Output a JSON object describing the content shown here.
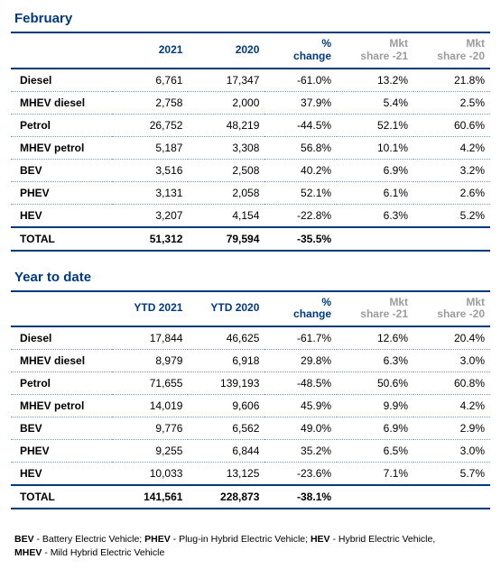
{
  "sections": [
    {
      "id": "feb",
      "title": "February",
      "headers": [
        "",
        "2021",
        "2020",
        "% change",
        "Mkt share -21",
        "Mkt share -20"
      ],
      "rows": [
        {
          "label": "Diesel",
          "a": "6,761",
          "b": "17,347",
          "c": "-61.0%",
          "d": "13.2%",
          "e": "21.8%"
        },
        {
          "label": "MHEV diesel",
          "a": "2,758",
          "b": "2,000",
          "c": "37.9%",
          "d": "5.4%",
          "e": "2.5%"
        },
        {
          "label": "Petrol",
          "a": "26,752",
          "b": "48,219",
          "c": "-44.5%",
          "d": "52.1%",
          "e": "60.6%"
        },
        {
          "label": "MHEV petrol",
          "a": "5,187",
          "b": "3,308",
          "c": "56.8%",
          "d": "10.1%",
          "e": "4.2%"
        },
        {
          "label": "BEV",
          "a": "3,516",
          "b": "2,508",
          "c": "40.2%",
          "d": "6.9%",
          "e": "3.2%"
        },
        {
          "label": "PHEV",
          "a": "3,131",
          "b": "2,058",
          "c": "52.1%",
          "d": "6.1%",
          "e": "2.6%"
        },
        {
          "label": "HEV",
          "a": "3,207",
          "b": "4,154",
          "c": "-22.8%",
          "d": "6.3%",
          "e": "5.2%"
        }
      ],
      "total": {
        "label": "TOTAL",
        "a": "51,312",
        "b": "79,594",
        "c": "-35.5%",
        "d": "",
        "e": ""
      }
    },
    {
      "id": "ytd",
      "title": "Year to date",
      "headers": [
        "",
        "YTD 2021",
        "YTD 2020",
        "% change",
        "Mkt share -21",
        "Mkt share -20"
      ],
      "rows": [
        {
          "label": "Diesel",
          "a": "17,844",
          "b": "46,625",
          "c": "-61.7%",
          "d": "12.6%",
          "e": "20.4%"
        },
        {
          "label": "MHEV diesel",
          "a": "8,979",
          "b": "6,918",
          "c": "29.8%",
          "d": "6.3%",
          "e": "3.0%"
        },
        {
          "label": "Petrol",
          "a": "71,655",
          "b": "139,193",
          "c": "-48.5%",
          "d": "50.6%",
          "e": "60.8%"
        },
        {
          "label": "MHEV petrol",
          "a": "14,019",
          "b": "9,606",
          "c": "45.9%",
          "d": "9.9%",
          "e": "4.2%"
        },
        {
          "label": "BEV",
          "a": "9,776",
          "b": "6,562",
          "c": "49.0%",
          "d": "6.9%",
          "e": "2.9%"
        },
        {
          "label": "PHEV",
          "a": "9,255",
          "b": "6,844",
          "c": "35.2%",
          "d": "6.5%",
          "e": "3.0%"
        },
        {
          "label": "HEV",
          "a": "10,033",
          "b": "13,125",
          "c": "-23.6%",
          "d": "7.1%",
          "e": "5.7%"
        }
      ],
      "total": {
        "label": "TOTAL",
        "a": "141,561",
        "b": "228,873",
        "c": "-38.1%",
        "d": "",
        "e": ""
      }
    }
  ],
  "legend": {
    "items": [
      {
        "abbr": "BEV",
        "full": "Battery Electric Vehicle",
        "suffix": "; "
      },
      {
        "abbr": "PHEV",
        "full": "Plug-in Hybrid Electric Vehicle",
        "suffix": "; "
      },
      {
        "abbr": "HEV",
        "full": "Hybrid Electric Vehicle",
        "suffix": ","
      }
    ],
    "line2abbr": "MHEV",
    "line2full": "Mild Hybrid Electric Vehicle"
  },
  "style": {
    "accent": "#003a7d",
    "muted": "#9c9c9c",
    "dotted_border": "#7a9acb",
    "background": "#ffffff"
  }
}
